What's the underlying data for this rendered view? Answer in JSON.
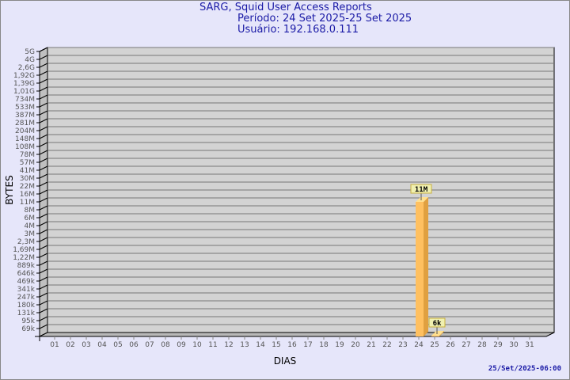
{
  "header": {
    "title": "SARG, Squid User Access Reports",
    "period": "Período: 24 Set 2025-25 Set 2025",
    "user": "Usuário: 192.168.0.111"
  },
  "footer": {
    "timestamp": "25/Set/2025-06:00"
  },
  "colors": {
    "bar": "#ffc060",
    "bar_side": "#e0a040",
    "bar_top": "#ffe090",
    "plot_bg": "#d3d3d3",
    "label_bg": "#f0f0b0",
    "text": "#1a1aa6"
  },
  "chart_data": {
    "type": "bar",
    "three_d": true,
    "scale": "log",
    "grid": true,
    "xlabel": "DIAS",
    "ylabel": "BYTES",
    "categories": [
      "01",
      "02",
      "03",
      "04",
      "05",
      "06",
      "07",
      "08",
      "09",
      "10",
      "11",
      "12",
      "13",
      "14",
      "15",
      "16",
      "17",
      "18",
      "19",
      "20",
      "21",
      "22",
      "23",
      "24",
      "25",
      "26",
      "27",
      "28",
      "29",
      "30",
      "31"
    ],
    "series": [
      {
        "values": {
          "24": 11000000,
          "25": 6000
        }
      }
    ],
    "data_labels": {
      "24": "11M",
      "25": "6k"
    },
    "y_ticks": [
      {
        "label": "69k",
        "value": 69000
      },
      {
        "label": "95k",
        "value": 95000
      },
      {
        "label": "131k",
        "value": 131000
      },
      {
        "label": "180k",
        "value": 180000
      },
      {
        "label": "247k",
        "value": 247000
      },
      {
        "label": "341k",
        "value": 341000
      },
      {
        "label": "469k",
        "value": 469000
      },
      {
        "label": "646k",
        "value": 646000
      },
      {
        "label": "889k",
        "value": 889000
      },
      {
        "label": "1,22M",
        "value": 1220000
      },
      {
        "label": "1,69M",
        "value": 1690000
      },
      {
        "label": "2,3M",
        "value": 2300000
      },
      {
        "label": "3M",
        "value": 3000000
      },
      {
        "label": "4M",
        "value": 4000000
      },
      {
        "label": "6M",
        "value": 6000000
      },
      {
        "label": "8M",
        "value": 8000000
      },
      {
        "label": "11M",
        "value": 11000000
      },
      {
        "label": "16M",
        "value": 16000000
      },
      {
        "label": "22M",
        "value": 22000000
      },
      {
        "label": "30M",
        "value": 30000000
      },
      {
        "label": "41M",
        "value": 41000000
      },
      {
        "label": "57M",
        "value": 57000000
      },
      {
        "label": "78M",
        "value": 78000000
      },
      {
        "label": "108M",
        "value": 108000000
      },
      {
        "label": "148M",
        "value": 148000000
      },
      {
        "label": "204M",
        "value": 204000000
      },
      {
        "label": "281M",
        "value": 281000000
      },
      {
        "label": "387M",
        "value": 387000000
      },
      {
        "label": "533M",
        "value": 533000000
      },
      {
        "label": "734M",
        "value": 734000000
      },
      {
        "label": "1,01G",
        "value": 1010000000
      },
      {
        "label": "1,39G",
        "value": 1390000000
      },
      {
        "label": "1,92G",
        "value": 1920000000
      },
      {
        "label": "2,6G",
        "value": 2600000000
      },
      {
        "label": "4G",
        "value": 4000000000
      },
      {
        "label": "5G",
        "value": 5000000000
      }
    ]
  }
}
